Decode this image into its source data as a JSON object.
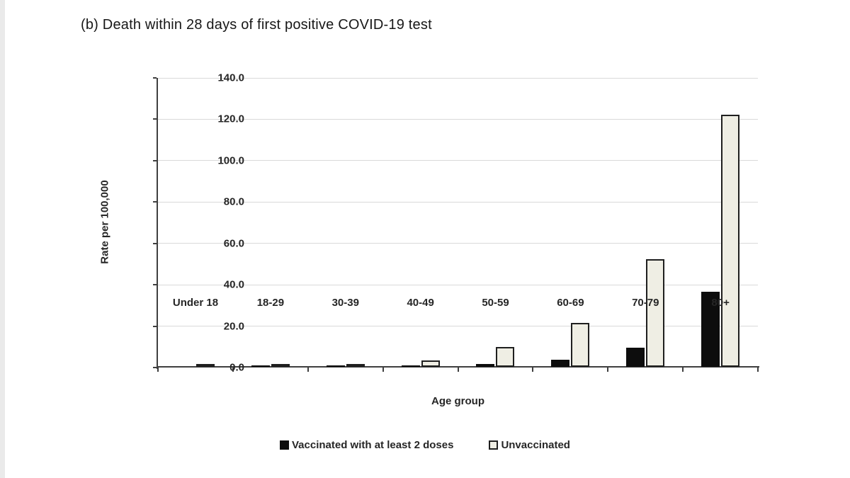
{
  "chart_data": {
    "type": "bar",
    "title": "(b) Death within 28 days of first positive COVID-19 test",
    "xlabel": "Age group",
    "ylabel": "Rate per 100,000",
    "categories": [
      "Under 18",
      "18-29",
      "30-39",
      "40-49",
      "50-59",
      "60-69",
      "70-79",
      "80+"
    ],
    "series": [
      {
        "name": "Vaccinated with at least 2 doses",
        "style": "filled",
        "color": "#0d0d0d",
        "values": [
          0.0,
          0.2,
          0.3,
          0.6,
          1.3,
          3.5,
          9.3,
          36.2
        ]
      },
      {
        "name": "Unvaccinated",
        "style": "outlined",
        "color": "#efeee4",
        "border_color": "#1f1f1f",
        "values": [
          0.1,
          0.6,
          1.2,
          3.0,
          9.6,
          21.2,
          52.2,
          121.7
        ]
      }
    ],
    "ylim": [
      0,
      140
    ],
    "ytick_step": 20,
    "ytick_labels": [
      "0.0",
      "20.0",
      "40.0",
      "60.0",
      "80.0",
      "100.0",
      "120.0",
      "140.0"
    ],
    "grid": true,
    "legend_position": "bottom",
    "colors": {
      "gridline": "#d9d9d9",
      "axis": "#3f3f3f",
      "text": "#262626"
    }
  }
}
